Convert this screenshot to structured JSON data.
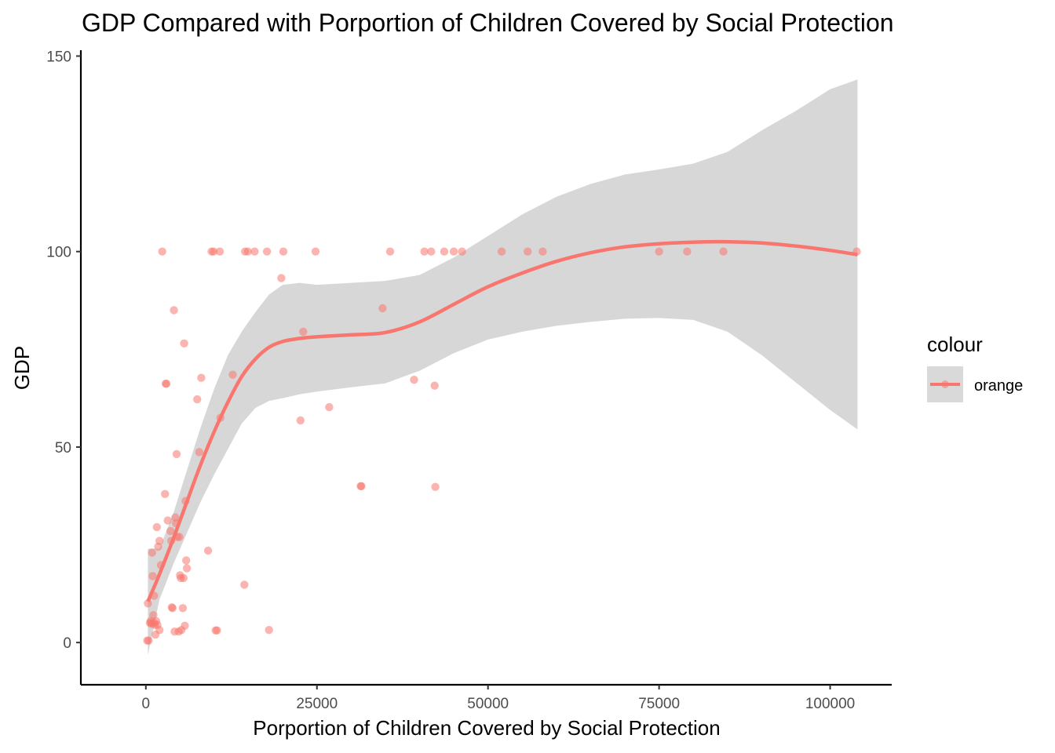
{
  "chart_data": {
    "type": "scatter",
    "title": "GDP Compared with Porportion of Children Covered by Social Protection",
    "xlabel": "Porportion of Children Covered by Social Protection",
    "ylabel": "GDP",
    "xlim": [
      -9500,
      109000
    ],
    "ylim": [
      -10.8,
      151.5
    ],
    "xticks": [
      0,
      25000,
      50000,
      75000,
      100000
    ],
    "yticks": [
      0,
      50,
      100,
      150
    ],
    "grid": false,
    "colors": {
      "point": "#F8766D",
      "line": "#F8766D",
      "ribbon": "#bdbdbd",
      "legend_key_bg": "#d9d9d9"
    },
    "legend": {
      "title": "colour",
      "entries": [
        "orange"
      ],
      "position": "right"
    },
    "series": [
      {
        "name": "orange",
        "points": [
          [
            200,
            0.5
          ],
          [
            400,
            0.5
          ],
          [
            300,
            10
          ],
          [
            600,
            5
          ],
          [
            700,
            5.5
          ],
          [
            800,
            4.8
          ],
          [
            900,
            23
          ],
          [
            1000,
            17
          ],
          [
            1100,
            7
          ],
          [
            1200,
            5
          ],
          [
            1300,
            4.5
          ],
          [
            1200,
            12
          ],
          [
            1400,
            2
          ],
          [
            1500,
            5.5
          ],
          [
            1600,
            29.5
          ],
          [
            1700,
            4.5
          ],
          [
            1800,
            24.5
          ],
          [
            2000,
            3.2
          ],
          [
            2000,
            26
          ],
          [
            2200,
            19.8
          ],
          [
            2400,
            100
          ],
          [
            2800,
            38
          ],
          [
            2900,
            66.2
          ],
          [
            3000,
            66.2
          ],
          [
            3200,
            31.2
          ],
          [
            3600,
            28.5
          ],
          [
            3700,
            26
          ],
          [
            3800,
            9
          ],
          [
            3900,
            8.8
          ],
          [
            4100,
            85
          ],
          [
            4200,
            2.8
          ],
          [
            4300,
            32
          ],
          [
            4400,
            30.5
          ],
          [
            4500,
            48.2
          ],
          [
            4600,
            27
          ],
          [
            4800,
            2.8
          ],
          [
            4900,
            27
          ],
          [
            5000,
            17.2
          ],
          [
            5100,
            16.5
          ],
          [
            5200,
            3.2
          ],
          [
            5400,
            8.8
          ],
          [
            5500,
            16.5
          ],
          [
            5600,
            76.5
          ],
          [
            5700,
            4.3
          ],
          [
            5800,
            36.2
          ],
          [
            5900,
            21
          ],
          [
            6000,
            19
          ],
          [
            7500,
            62.2
          ],
          [
            7800,
            48.7
          ],
          [
            8100,
            67.7
          ],
          [
            9100,
            23.5
          ],
          [
            9600,
            100
          ],
          [
            9900,
            100
          ],
          [
            10200,
            3.1
          ],
          [
            10400,
            3.1
          ],
          [
            10800,
            100
          ],
          [
            10900,
            57.5
          ],
          [
            12700,
            68.5
          ],
          [
            14400,
            14.8
          ],
          [
            14500,
            100
          ],
          [
            14900,
            100
          ],
          [
            15900,
            100
          ],
          [
            17700,
            100
          ],
          [
            18000,
            3.2
          ],
          [
            19800,
            93.2
          ],
          [
            20100,
            100
          ],
          [
            22600,
            56.8
          ],
          [
            23000,
            79.5
          ],
          [
            24800,
            100
          ],
          [
            26800,
            60.2
          ],
          [
            31400,
            40
          ],
          [
            31500,
            40
          ],
          [
            34600,
            85.5
          ],
          [
            35700,
            100
          ],
          [
            39200,
            67.2
          ],
          [
            40700,
            100
          ],
          [
            41700,
            100
          ],
          [
            42200,
            65.7
          ],
          [
            42300,
            39.8
          ],
          [
            43600,
            100
          ],
          [
            45000,
            100
          ],
          [
            46200,
            100
          ],
          [
            52000,
            100
          ],
          [
            55800,
            100
          ],
          [
            58000,
            100
          ],
          [
            75000,
            100
          ],
          [
            79100,
            100
          ],
          [
            84400,
            100
          ],
          [
            103900,
            100
          ]
        ],
        "smooth": {
          "x": [
            300,
            2000,
            4000,
            6000,
            8000,
            10000,
            12000,
            14000,
            16000,
            18000,
            20000,
            22500,
            25000,
            30000,
            35000,
            40000,
            45000,
            50000,
            55000,
            60000,
            65000,
            70000,
            75000,
            80000,
            85000,
            90000,
            95000,
            100000,
            104000
          ],
          "fit": [
            10.5,
            17.5,
            26.5,
            36,
            45.5,
            54,
            61.5,
            68,
            72.5,
            75.5,
            77,
            77.8,
            78.2,
            78.7,
            79.3,
            82,
            86.5,
            91,
            94.5,
            97.5,
            99.7,
            101.2,
            102,
            102.4,
            102.5,
            102.2,
            101.4,
            100.3,
            99.2
          ],
          "lower": [
            -3.2,
            11,
            20,
            28,
            36,
            43,
            49.5,
            56,
            60,
            61.8,
            62.5,
            63.5,
            64.2,
            65.3,
            66.3,
            69.5,
            74,
            77.5,
            79.5,
            81,
            82,
            82.8,
            83,
            82.5,
            79.5,
            73.5,
            66.5,
            59.5,
            54.5
          ],
          "upper": [
            24,
            24,
            33,
            44,
            55,
            65,
            73.5,
            79.5,
            84.5,
            89,
            91.5,
            92,
            91.5,
            92,
            92.5,
            94,
            98.5,
            104,
            109.5,
            114,
            117.3,
            119.7,
            121,
            122.5,
            125.5,
            131,
            136,
            141.5,
            144
          ]
        }
      }
    ]
  }
}
